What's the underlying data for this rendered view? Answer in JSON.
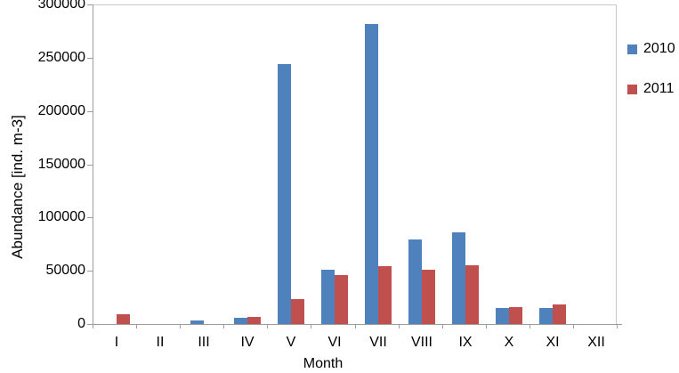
{
  "chart_data": {
    "type": "bar",
    "title": "",
    "xlabel": "Month",
    "ylabel": "Abundance [ind. m-3]",
    "categories": [
      "I",
      "II",
      "III",
      "IV",
      "V",
      "VI",
      "VII",
      "VIII",
      "IX",
      "X",
      "XI",
      "XII"
    ],
    "series": [
      {
        "name": "2010",
        "color": "#4F81BD",
        "values": [
          0,
          0,
          3500,
          6000,
          244000,
          51000,
          282000,
          79000,
          86000,
          15000,
          15000,
          0
        ]
      },
      {
        "name": "2011",
        "color": "#C0504D",
        "values": [
          9000,
          0,
          0,
          7000,
          23000,
          46000,
          54000,
          51000,
          55000,
          16000,
          18000,
          0
        ]
      }
    ],
    "ylim": [
      0,
      300000
    ],
    "ytick_step": 50000,
    "yticks": [
      "0",
      "50000",
      "100000",
      "150000",
      "200000",
      "250000",
      "300000"
    ],
    "legend_position": "right",
    "grid": false,
    "colors": {
      "plot_border": "#C9C9C9",
      "axis_line": "#9C9C9C",
      "text": "#000000",
      "background": "#FFFFFF"
    }
  }
}
